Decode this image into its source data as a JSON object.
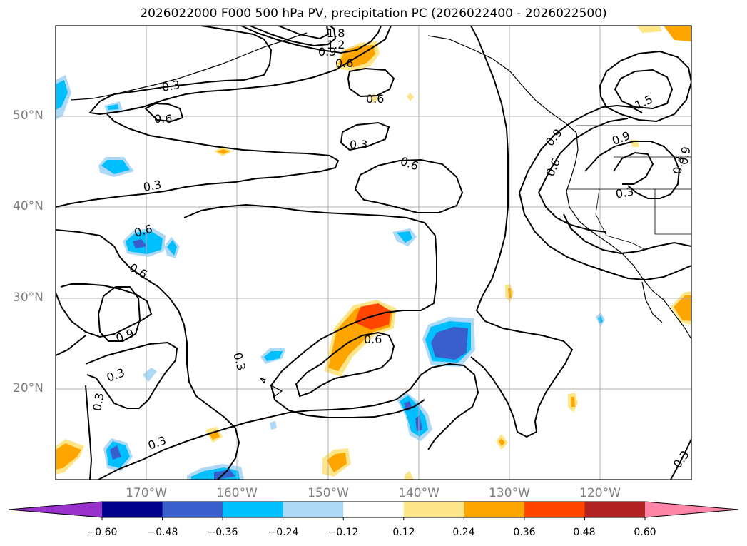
{
  "title": "2026022000 F000 500 hPa PV, precipitation PC (2026022400 - 2026022500)",
  "map": {
    "lat_labels": [
      "50°N",
      "40°N",
      "30°N",
      "20°N"
    ],
    "lon_labels": [
      "170°W",
      "160°W",
      "150°W",
      "140°W",
      "130°W",
      "120°W"
    ],
    "contour_labels": [
      "1.8",
      "1.2",
      "0.9",
      "0.6",
      "0.6",
      "0.6",
      "0.3",
      "0.6",
      "0.3",
      "0.6",
      "0.6",
      "0.9",
      "0.3",
      "0.3",
      "0.3",
      "0.6",
      "0.3",
      "0.3",
      "1.5",
      "0.9",
      "0.9",
      "0.6",
      "0.3",
      "0.9",
      "0.3",
      "0.3"
    ]
  },
  "colorbar": {
    "ticks": [
      "−0.60",
      "−0.48",
      "−0.36",
      "−0.24",
      "−0.12",
      "0.12",
      "0.24",
      "0.36",
      "0.48",
      "0.60"
    ],
    "colors": [
      "#9932cc",
      "#00008b",
      "#3a5fcd",
      "#00bfff",
      "#add8f6",
      "#ffffff",
      "#fde68a",
      "#ffa500",
      "#ff4500",
      "#b22222",
      "#ff85a8"
    ]
  }
}
